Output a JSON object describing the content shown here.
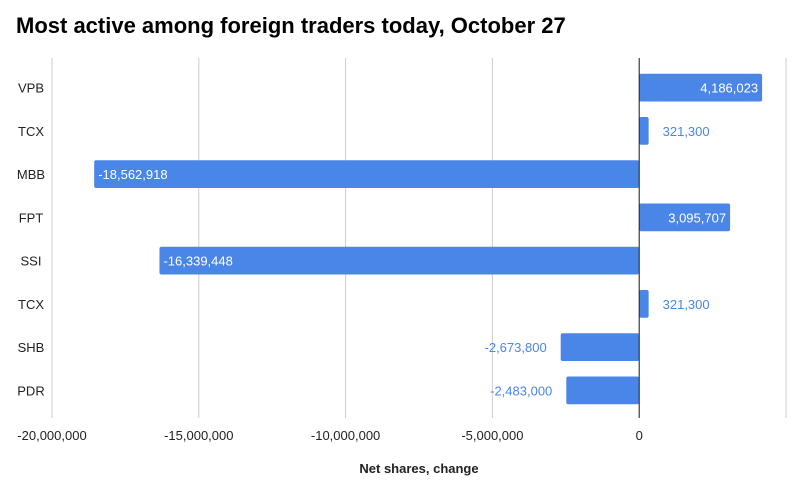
{
  "chart_data": {
    "type": "bar",
    "orientation": "horizontal",
    "title": "Most active among foreign traders today, October 27",
    "xlabel": "Net shares, change",
    "ylabel": "",
    "categories": [
      "VPB",
      "TCX",
      "MBB",
      "FPT",
      "SSI",
      "TCX",
      "SHB",
      "PDR"
    ],
    "values": [
      4186023,
      321300,
      -18562918,
      3095707,
      -16339448,
      321300,
      -2673800,
      -2483000
    ],
    "data_labels": [
      "4,186,023",
      "321,300",
      "-18,562,918",
      "3,095,707",
      "-16,339,448",
      "321,300",
      "-2,673,800",
      "-2,483,000"
    ],
    "xlim": [
      -20000000,
      5000000
    ],
    "xticks": [
      -20000000,
      -15000000,
      -10000000,
      -5000000,
      0
    ],
    "xtick_labels": [
      "-20,000,000",
      "-15,000,000",
      "-10,000,000",
      "-5,000,000",
      "0"
    ],
    "grid": true,
    "legend": "none",
    "colors": {
      "bar": "#4a86e8",
      "label_inside": "#ffffff",
      "label_outside": "#4a86e8",
      "grid": "#cccccc",
      "zero_line": "#222222"
    }
  }
}
